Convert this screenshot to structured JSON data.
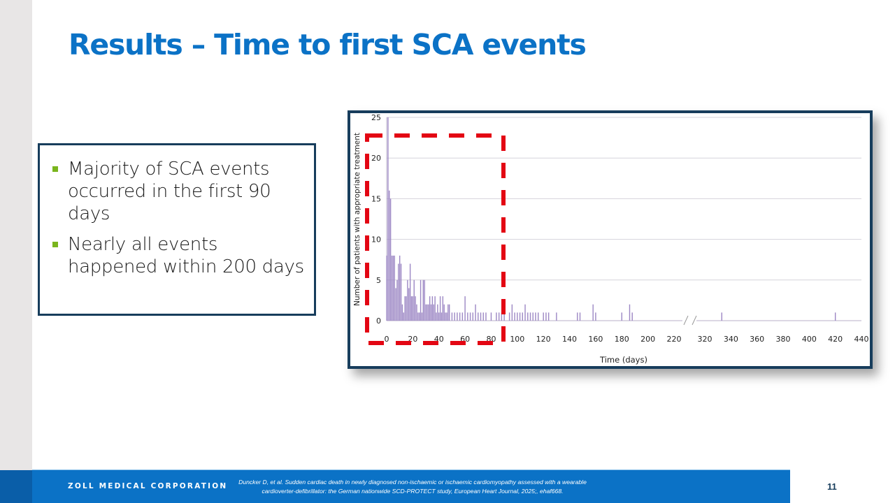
{
  "slide": {
    "title": "Results – Time to first SCA events",
    "page_number": "11"
  },
  "bullets": [
    {
      "text": "Majority of SCA events occurred in the first 90 days"
    },
    {
      "text": "Nearly all events happened within 200 days"
    }
  ],
  "footer": {
    "company": "ZOLL MEDICAL CORPORATION",
    "citation_line1": "Duncker D, et al. Sudden cardiac death in newly diagnosed non-ischaemic or ischaemic cardiomyopathy assessed with a wearable",
    "citation_line2": "cardioverter-defibrillator: the German nationwide SCD-PROTECT study, European Heart Journal, 2025;, ehaf668."
  },
  "colors": {
    "title": "#0b72c6",
    "frame": "#173d5c",
    "bar": "#9c87c4",
    "highlight": "#e30613",
    "bullet": "#7ab51d",
    "footer": "#0b72c6"
  },
  "chart_data": {
    "type": "bar",
    "title": "",
    "xlabel": "Time (days)",
    "ylabel": "Number of patients with appropriate treatment",
    "ylim": [
      0,
      25
    ],
    "yticks": [
      0,
      5,
      10,
      15,
      20,
      25
    ],
    "xticks": [
      0,
      20,
      40,
      60,
      80,
      100,
      120,
      140,
      160,
      180,
      200,
      220,
      320,
      340,
      360,
      380,
      400,
      420,
      440
    ],
    "axis_break": "between 220 and 320",
    "grid": true,
    "legend": "none",
    "highlight_box": {
      "style": "red dashed rectangle",
      "x_range": [
        0,
        90
      ],
      "note": "first 90 days"
    },
    "x": [
      0,
      1,
      2,
      3,
      4,
      5,
      6,
      7,
      8,
      9,
      10,
      11,
      12,
      13,
      14,
      15,
      16,
      17,
      18,
      19,
      20,
      21,
      22,
      23,
      24,
      25,
      26,
      27,
      28,
      29,
      30,
      31,
      32,
      33,
      34,
      35,
      36,
      37,
      38,
      39,
      40,
      41,
      42,
      43,
      44,
      45,
      46,
      47,
      48,
      50,
      52,
      54,
      56,
      58,
      60,
      62,
      64,
      66,
      68,
      70,
      72,
      74,
      76,
      80,
      84,
      86,
      88,
      90,
      94,
      96,
      98,
      100,
      102,
      104,
      106,
      108,
      110,
      112,
      114,
      116,
      120,
      122,
      124,
      130,
      146,
      148,
      158,
      160,
      180,
      186,
      188,
      333,
      420
    ],
    "values": [
      8,
      25,
      16,
      15,
      8,
      8,
      8,
      4,
      5,
      7,
      8,
      7,
      2,
      1,
      3,
      3,
      5,
      4,
      7,
      3,
      3,
      5,
      3,
      2,
      1,
      1,
      5,
      1,
      5,
      5,
      2,
      2,
      2,
      3,
      2,
      3,
      2,
      3,
      1,
      2,
      1,
      3,
      1,
      3,
      2,
      1,
      1,
      2,
      2,
      1,
      1,
      1,
      1,
      1,
      3,
      1,
      1,
      1,
      2,
      1,
      1,
      1,
      1,
      1,
      1,
      1,
      1,
      1,
      1,
      2,
      1,
      1,
      1,
      1,
      2,
      1,
      1,
      1,
      1,
      1,
      1,
      1,
      1,
      1,
      1,
      1,
      2,
      1,
      1,
      2,
      1,
      1,
      1
    ]
  }
}
